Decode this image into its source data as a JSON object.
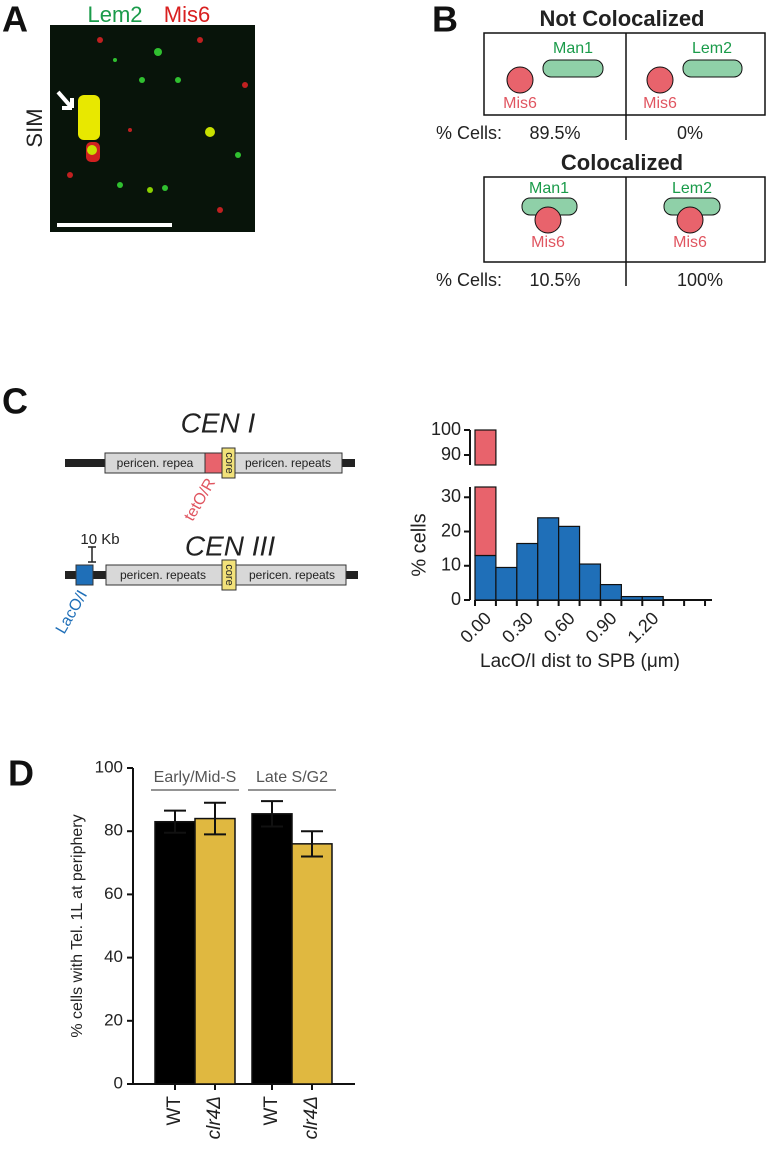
{
  "panel_a": {
    "label": "A",
    "legend": [
      "Lem2",
      "Mis6"
    ],
    "side_label": "SIM"
  },
  "panel_b": {
    "label": "B",
    "sections": [
      {
        "title": "Not Colocalized",
        "row_label": "% Cells:",
        "cells": [
          {
            "protein": "Man1",
            "kinetochore": "Mis6",
            "percent": "89.5%"
          },
          {
            "protein": "Lem2",
            "kinetochore": "Mis6",
            "percent": "0%"
          }
        ]
      },
      {
        "title": "Colocalized",
        "row_label": "% Cells:",
        "cells": [
          {
            "protein": "Man1",
            "kinetochore": "Mis6",
            "percent": "10.5%"
          },
          {
            "protein": "Lem2",
            "kinetochore": "Mis6",
            "percent": "100%"
          }
        ]
      }
    ]
  },
  "panel_c": {
    "label": "C",
    "constructs": [
      {
        "name": "CEN I",
        "left_repeat": "pericen. repea",
        "core": "core",
        "right_repeat": "pericen. repeats",
        "marker": "tetO/R"
      },
      {
        "name": "CEN III",
        "left_repeat": "pericen. repeats",
        "core": "core",
        "right_repeat": "pericen. repeats",
        "marker": "LacO/I",
        "scale": "10 Kb"
      }
    ]
  },
  "panel_d": {
    "label": "D"
  },
  "chart_data": [
    {
      "type": "histogram",
      "xlabel": "LacO/I dist to SPB (μm)",
      "ylabel": "% cells",
      "bins": [
        0,
        0.15,
        0.3,
        0.45,
        0.6,
        0.75,
        0.9,
        1.05,
        1.2,
        1.35,
        1.5,
        1.65
      ],
      "series": [
        {
          "color": "#1f6fb8",
          "values": [
            13,
            9.5,
            16.5,
            24,
            21.5,
            10.5,
            4.5,
            1,
            1,
            0,
            0
          ]
        },
        {
          "color": "#e8636c",
          "values": [
            87,
            0,
            0,
            0,
            0,
            0,
            0,
            0,
            0,
            0,
            0
          ]
        }
      ],
      "xlim": [
        0,
        1.7
      ],
      "xticks": [
        {
          "value": 0,
          "label": "0.00"
        },
        {
          "value": 0.3,
          "label": "0.30"
        },
        {
          "value": 0.6,
          "label": "0.60"
        },
        {
          "value": 0.9,
          "label": "0.90"
        },
        {
          "value": 1.2,
          "label": "1.20"
        }
      ],
      "ylim": [
        0,
        100
      ],
      "y_break": [
        33,
        86
      ],
      "yticks": [
        0,
        10,
        20,
        30,
        90,
        100
      ]
    },
    {
      "type": "bar",
      "ylabel": "% cells with Tel. 1L at periphery",
      "categories": [
        "WT",
        "clr4Δ",
        "WT",
        "clr4Δ"
      ],
      "values": [
        83,
        84,
        85.5,
        76
      ],
      "errors": [
        3.5,
        5,
        4,
        4
      ],
      "colors": [
        "#000000",
        "#e0b840",
        "#000000",
        "#e0b840"
      ],
      "groups": [
        {
          "label": "Early/Mid-S",
          "members": [
            0,
            1
          ]
        },
        {
          "label": "Late S/G2",
          "members": [
            2,
            3
          ]
        }
      ],
      "ylim": [
        0,
        100
      ],
      "yticks": [
        0,
        20,
        40,
        60,
        80,
        100
      ]
    }
  ]
}
